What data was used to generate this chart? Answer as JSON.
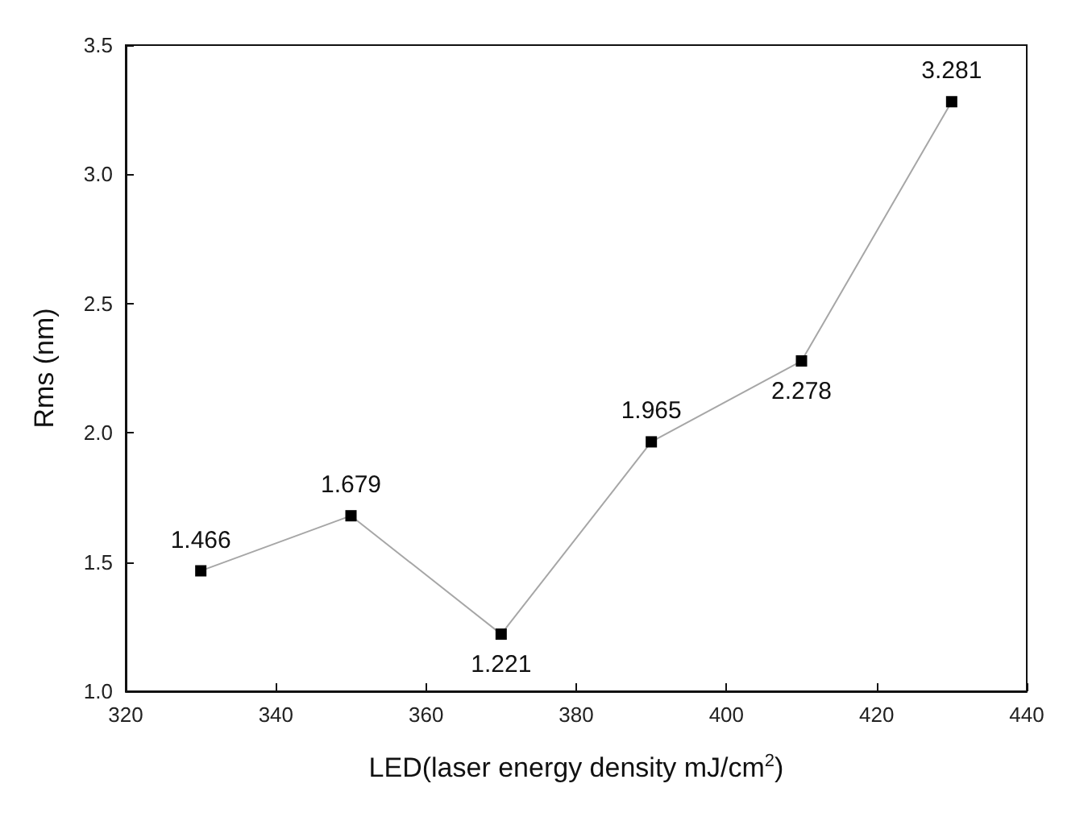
{
  "chart_data": {
    "type": "line",
    "xlabel": "LED(laser energy density mJ/cm$^{2}$)",
    "ylabel": "Rms (nm)",
    "x": [
      330,
      350,
      370,
      390,
      410,
      430
    ],
    "series": [
      {
        "color": "#000000",
        "values": [
          1.466,
          1.679,
          1.221,
          1.965,
          2.278,
          3.281
        ]
      }
    ],
    "xlim": [
      320,
      440
    ],
    "xticks": [
      320,
      340,
      360,
      380,
      400,
      420,
      440
    ],
    "ylim": [
      1.0,
      3.5
    ],
    "yticks": [
      {
        "value": 1.0,
        "label": "1.0"
      },
      {
        "value": 1.5,
        "label": "1.5"
      },
      {
        "value": 2.0,
        "label": "2.0"
      },
      {
        "value": 2.5,
        "label": "2.5"
      },
      {
        "value": 3.0,
        "label": "3.0"
      },
      {
        "value": 3.5,
        "label": "3.5"
      }
    ],
    "data_labels": true,
    "marker": "square",
    "line_style": "solid",
    "grid": false
  }
}
